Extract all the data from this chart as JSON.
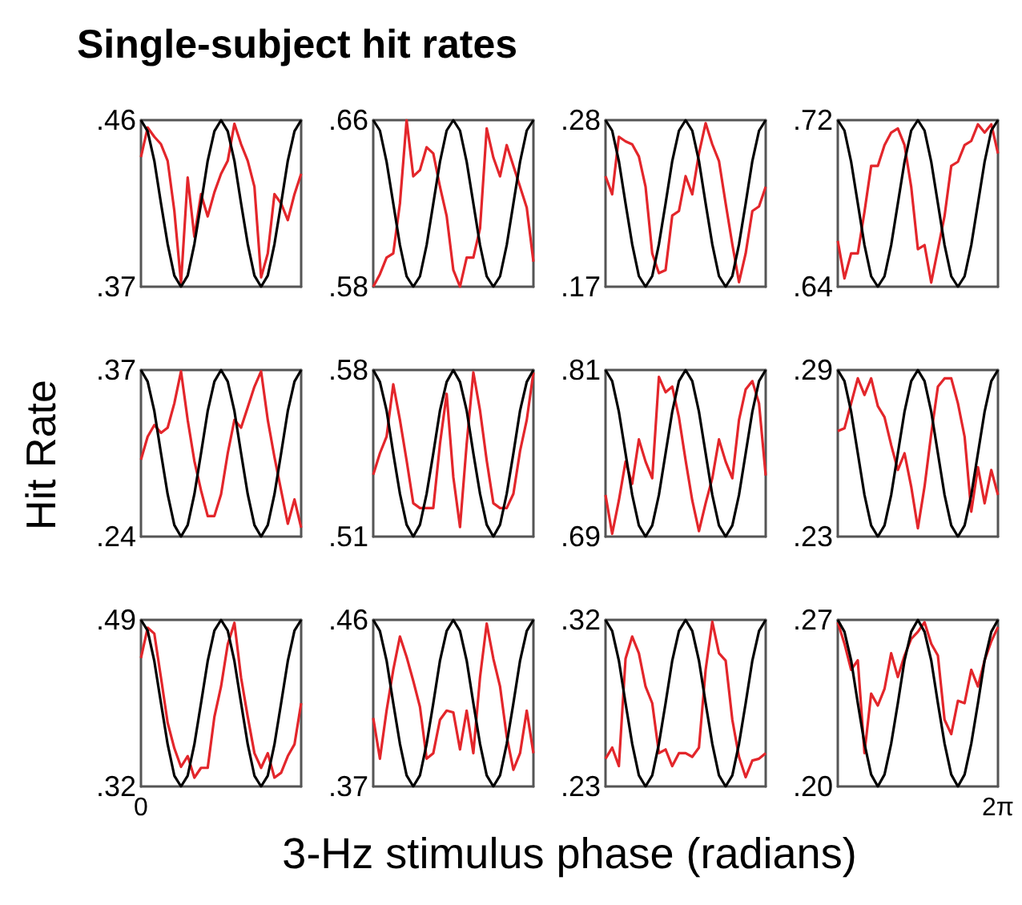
{
  "chart_data": [
    {
      "type": "line",
      "title": "Single-subject hit rates",
      "categories": [
        null,
        null,
        null,
        null,
        null,
        null,
        null,
        null,
        null,
        null,
        null,
        null,
        null,
        null,
        null,
        null,
        null,
        null,
        null,
        null,
        null,
        null,
        null,
        null,
        null
      ],
      "ylim": [
        0.37,
        0.46
      ],
      "yticks": [
        {
          "value": 0.37,
          "label": ".37"
        },
        {
          "value": 0.46,
          "label": ".46"
        }
      ],
      "series": [
        {
          "color": "#e3262b",
          "values": [
            0.44,
            0.456,
            0.451,
            0.447,
            0.438,
            0.411,
            0.372,
            0.429,
            0.397,
            0.42,
            0.408,
            0.421,
            0.431,
            0.438,
            0.458,
            0.447,
            0.438,
            0.424,
            0.375,
            0.388,
            0.42,
            0.415,
            0.406,
            0.42,
            0.431
          ]
        },
        {
          "color": "#000000",
          "values": [
            0.46,
            0.454,
            0.438,
            0.415,
            0.393,
            0.376,
            0.37,
            0.376,
            0.393,
            0.415,
            0.438,
            0.454,
            0.46,
            0.454,
            0.438,
            0.415,
            0.393,
            0.376,
            0.37,
            0.376,
            0.393,
            0.415,
            0.438,
            0.454,
            0.46
          ]
        }
      ]
    },
    {
      "type": "line",
      "categories": [
        null,
        null,
        null,
        null,
        null,
        null,
        null,
        null,
        null,
        null,
        null,
        null,
        null,
        null,
        null,
        null,
        null,
        null,
        null,
        null,
        null,
        null,
        null,
        null,
        null
      ],
      "ylim": [
        0.58,
        0.66
      ],
      "yticks": [
        {
          "value": 0.58,
          "label": ".58"
        },
        {
          "value": 0.66,
          "label": ".66"
        }
      ],
      "series": [
        {
          "color": "#e3262b",
          "values": [
            0.58,
            0.586,
            0.594,
            0.596,
            0.62,
            0.66,
            0.633,
            0.636,
            0.647,
            0.644,
            0.628,
            0.614,
            0.588,
            0.58,
            0.594,
            0.594,
            0.608,
            0.656,
            0.642,
            0.633,
            0.648,
            0.638,
            0.628,
            0.618,
            0.592
          ]
        },
        {
          "color": "#000000",
          "values": [
            0.66,
            0.655,
            0.64,
            0.62,
            0.6,
            0.585,
            0.58,
            0.585,
            0.6,
            0.62,
            0.64,
            0.655,
            0.66,
            0.655,
            0.64,
            0.62,
            0.6,
            0.585,
            0.58,
            0.585,
            0.6,
            0.62,
            0.64,
            0.655,
            0.66
          ]
        }
      ]
    },
    {
      "type": "line",
      "categories": [
        null,
        null,
        null,
        null,
        null,
        null,
        null,
        null,
        null,
        null,
        null,
        null,
        null,
        null,
        null,
        null,
        null,
        null,
        null,
        null,
        null,
        null,
        null,
        null,
        null
      ],
      "ylim": [
        0.17,
        0.28
      ],
      "yticks": [
        {
          "value": 0.17,
          "label": ".17"
        },
        {
          "value": 0.28,
          "label": ".28"
        }
      ],
      "series": [
        {
          "color": "#e3262b",
          "values": [
            0.243,
            0.231,
            0.269,
            0.266,
            0.264,
            0.256,
            0.236,
            0.192,
            0.179,
            0.181,
            0.217,
            0.22,
            0.243,
            0.231,
            0.258,
            0.278,
            0.264,
            0.253,
            0.225,
            0.198,
            0.173,
            0.192,
            0.22,
            0.223,
            0.236
          ]
        },
        {
          "color": "#000000",
          "values": [
            0.28,
            0.273,
            0.253,
            0.225,
            0.198,
            0.177,
            0.17,
            0.177,
            0.198,
            0.225,
            0.253,
            0.273,
            0.28,
            0.273,
            0.253,
            0.225,
            0.198,
            0.177,
            0.17,
            0.177,
            0.198,
            0.225,
            0.253,
            0.273,
            0.28
          ]
        }
      ]
    },
    {
      "type": "line",
      "categories": [
        null,
        null,
        null,
        null,
        null,
        null,
        null,
        null,
        null,
        null,
        null,
        null,
        null,
        null,
        null,
        null,
        null,
        null,
        null,
        null,
        null,
        null,
        null,
        null,
        null
      ],
      "ylim": [
        0.64,
        0.72
      ],
      "yticks": [
        {
          "value": 0.64,
          "label": ".64"
        },
        {
          "value": 0.72,
          "label": ".72"
        }
      ],
      "series": [
        {
          "color": "#e3262b",
          "values": [
            0.662,
            0.644,
            0.656,
            0.656,
            0.676,
            0.698,
            0.698,
            0.708,
            0.714,
            0.716,
            0.708,
            0.688,
            0.658,
            0.66,
            0.642,
            0.658,
            0.674,
            0.698,
            0.7,
            0.708,
            0.71,
            0.718,
            0.714,
            0.718,
            0.704
          ]
        },
        {
          "color": "#000000",
          "values": [
            0.72,
            0.715,
            0.7,
            0.68,
            0.66,
            0.645,
            0.64,
            0.645,
            0.66,
            0.68,
            0.7,
            0.715,
            0.72,
            0.715,
            0.7,
            0.68,
            0.66,
            0.645,
            0.64,
            0.645,
            0.66,
            0.68,
            0.7,
            0.715,
            0.72
          ]
        }
      ]
    },
    {
      "type": "line",
      "ylabel": "Hit Rate",
      "categories": [
        null,
        null,
        null,
        null,
        null,
        null,
        null,
        null,
        null,
        null,
        null,
        null,
        null,
        null,
        null,
        null,
        null,
        null,
        null,
        null,
        null,
        null,
        null,
        null,
        null
      ],
      "ylim": [
        0.24,
        0.37
      ],
      "yticks": [
        {
          "value": 0.24,
          "label": ".24"
        },
        {
          "value": 0.37,
          "label": ".37"
        }
      ],
      "series": [
        {
          "color": "#e3262b",
          "values": [
            0.3,
            0.318,
            0.327,
            0.321,
            0.325,
            0.344,
            0.369,
            0.331,
            0.299,
            0.276,
            0.256,
            0.256,
            0.273,
            0.305,
            0.331,
            0.325,
            0.341,
            0.357,
            0.369,
            0.331,
            0.302,
            0.276,
            0.25,
            0.269,
            0.247
          ]
        },
        {
          "color": "#000000",
          "values": [
            0.37,
            0.361,
            0.338,
            0.305,
            0.273,
            0.249,
            0.24,
            0.249,
            0.273,
            0.305,
            0.338,
            0.361,
            0.37,
            0.361,
            0.338,
            0.305,
            0.273,
            0.249,
            0.24,
            0.249,
            0.273,
            0.305,
            0.338,
            0.361,
            0.37
          ]
        }
      ]
    },
    {
      "type": "line",
      "categories": [
        null,
        null,
        null,
        null,
        null,
        null,
        null,
        null,
        null,
        null,
        null,
        null,
        null,
        null,
        null,
        null,
        null,
        null,
        null,
        null,
        null,
        null,
        null,
        null,
        null
      ],
      "ylim": [
        0.51,
        0.58
      ],
      "yticks": [
        {
          "value": 0.51,
          "label": ".51"
        },
        {
          "value": 0.58,
          "label": ".58"
        }
      ],
      "series": [
        {
          "color": "#e3262b",
          "values": [
            0.536,
            0.545,
            0.552,
            0.574,
            0.559,
            0.542,
            0.524,
            0.522,
            0.522,
            0.522,
            0.549,
            0.57,
            0.535,
            0.514,
            0.549,
            0.579,
            0.563,
            0.542,
            0.524,
            0.522,
            0.522,
            0.528,
            0.546,
            0.559,
            0.579
          ]
        },
        {
          "color": "#000000",
          "values": [
            0.58,
            0.575,
            0.563,
            0.545,
            0.528,
            0.515,
            0.51,
            0.515,
            0.528,
            0.545,
            0.563,
            0.575,
            0.58,
            0.575,
            0.563,
            0.545,
            0.528,
            0.515,
            0.51,
            0.515,
            0.528,
            0.545,
            0.563,
            0.575,
            0.58
          ]
        }
      ]
    },
    {
      "type": "line",
      "categories": [
        null,
        null,
        null,
        null,
        null,
        null,
        null,
        null,
        null,
        null,
        null,
        null,
        null,
        null,
        null,
        null,
        null,
        null,
        null,
        null,
        null,
        null,
        null,
        null,
        null
      ],
      "ylim": [
        0.69,
        0.81
      ],
      "yticks": [
        {
          "value": 0.69,
          "label": ".69"
        },
        {
          "value": 0.81,
          "label": ".81"
        }
      ],
      "series": [
        {
          "color": "#e3262b",
          "values": [
            0.72,
            0.692,
            0.716,
            0.744,
            0.728,
            0.76,
            0.744,
            0.732,
            0.805,
            0.794,
            0.798,
            0.776,
            0.745,
            0.716,
            0.694,
            0.714,
            0.732,
            0.76,
            0.744,
            0.732,
            0.774,
            0.796,
            0.802,
            0.786,
            0.734
          ]
        },
        {
          "color": "#000000",
          "values": [
            0.81,
            0.802,
            0.78,
            0.75,
            0.72,
            0.698,
            0.69,
            0.698,
            0.72,
            0.75,
            0.78,
            0.802,
            0.81,
            0.802,
            0.78,
            0.75,
            0.72,
            0.698,
            0.69,
            0.698,
            0.72,
            0.75,
            0.78,
            0.802,
            0.81
          ]
        }
      ]
    },
    {
      "type": "line",
      "categories": [
        null,
        null,
        null,
        null,
        null,
        null,
        null,
        null,
        null,
        null,
        null,
        null,
        null,
        null,
        null,
        null,
        null,
        null,
        null,
        null,
        null,
        null,
        null,
        null,
        null
      ],
      "ylim": [
        0.23,
        0.29
      ],
      "yticks": [
        {
          "value": 0.23,
          "label": ".23"
        },
        {
          "value": 0.29,
          "label": ".29"
        }
      ],
      "series": [
        {
          "color": "#e3262b",
          "values": [
            0.268,
            0.269,
            0.278,
            0.287,
            0.281,
            0.287,
            0.277,
            0.273,
            0.263,
            0.254,
            0.26,
            0.248,
            0.233,
            0.248,
            0.267,
            0.284,
            0.287,
            0.287,
            0.278,
            0.266,
            0.239,
            0.255,
            0.242,
            0.254,
            0.245
          ]
        },
        {
          "color": "#000000",
          "values": [
            0.29,
            0.286,
            0.275,
            0.26,
            0.245,
            0.234,
            0.23,
            0.234,
            0.245,
            0.26,
            0.275,
            0.286,
            0.29,
            0.286,
            0.275,
            0.26,
            0.245,
            0.234,
            0.23,
            0.234,
            0.245,
            0.26,
            0.275,
            0.286,
            0.29
          ]
        }
      ]
    },
    {
      "type": "line",
      "xlabel": "3-Hz stimulus phase (radians)",
      "annotations": [
        "0"
      ],
      "categories": [
        null,
        null,
        null,
        null,
        null,
        null,
        null,
        null,
        null,
        null,
        null,
        null,
        null,
        null,
        null,
        null,
        null,
        null,
        null,
        null,
        null,
        null,
        null,
        null,
        null
      ],
      "ylim": [
        0.32,
        0.49
      ],
      "yticks": [
        {
          "value": 0.32,
          "label": ".32"
        },
        {
          "value": 0.49,
          "label": ".49"
        }
      ],
      "series": [
        {
          "color": "#e3262b",
          "values": [
            0.451,
            0.482,
            0.476,
            0.431,
            0.385,
            0.359,
            0.34,
            0.351,
            0.329,
            0.339,
            0.339,
            0.391,
            0.422,
            0.465,
            0.487,
            0.431,
            0.391,
            0.354,
            0.339,
            0.354,
            0.329,
            0.334,
            0.351,
            0.363,
            0.405
          ]
        },
        {
          "color": "#000000",
          "values": [
            0.49,
            0.479,
            0.448,
            0.405,
            0.363,
            0.331,
            0.32,
            0.331,
            0.363,
            0.405,
            0.448,
            0.479,
            0.49,
            0.479,
            0.448,
            0.405,
            0.363,
            0.331,
            0.32,
            0.331,
            0.363,
            0.405,
            0.448,
            0.479,
            0.49
          ]
        }
      ]
    },
    {
      "type": "line",
      "categories": [
        null,
        null,
        null,
        null,
        null,
        null,
        null,
        null,
        null,
        null,
        null,
        null,
        null,
        null,
        null,
        null,
        null,
        null,
        null,
        null,
        null,
        null,
        null,
        null,
        null
      ],
      "ylim": [
        0.37,
        0.46
      ],
      "yticks": [
        {
          "value": 0.37,
          "label": ".37"
        },
        {
          "value": 0.46,
          "label": ".46"
        }
      ],
      "series": [
        {
          "color": "#e3262b",
          "values": [
            0.407,
            0.385,
            0.411,
            0.433,
            0.451,
            0.44,
            0.427,
            0.413,
            0.385,
            0.388,
            0.406,
            0.411,
            0.41,
            0.39,
            0.411,
            0.388,
            0.429,
            0.458,
            0.439,
            0.424,
            0.397,
            0.379,
            0.388,
            0.411,
            0.388
          ]
        },
        {
          "color": "#000000",
          "values": [
            0.46,
            0.454,
            0.438,
            0.415,
            0.393,
            0.376,
            0.37,
            0.376,
            0.393,
            0.415,
            0.438,
            0.454,
            0.46,
            0.454,
            0.438,
            0.415,
            0.393,
            0.376,
            0.37,
            0.376,
            0.393,
            0.415,
            0.438,
            0.454,
            0.46
          ]
        }
      ]
    },
    {
      "type": "line",
      "categories": [
        null,
        null,
        null,
        null,
        null,
        null,
        null,
        null,
        null,
        null,
        null,
        null,
        null,
        null,
        null,
        null,
        null,
        null,
        null,
        null,
        null,
        null,
        null,
        null,
        null
      ],
      "ylim": [
        0.23,
        0.32
      ],
      "yticks": [
        {
          "value": 0.23,
          "label": ".23"
        },
        {
          "value": 0.32,
          "label": ".32"
        }
      ],
      "series": [
        {
          "color": "#e3262b",
          "values": [
            0.245,
            0.251,
            0.241,
            0.299,
            0.311,
            0.302,
            0.284,
            0.275,
            0.248,
            0.25,
            0.241,
            0.248,
            0.248,
            0.246,
            0.251,
            0.293,
            0.319,
            0.302,
            0.298,
            0.266,
            0.246,
            0.235,
            0.244,
            0.245,
            0.248
          ]
        },
        {
          "color": "#000000",
          "values": [
            0.32,
            0.314,
            0.298,
            0.275,
            0.253,
            0.236,
            0.23,
            0.236,
            0.253,
            0.275,
            0.298,
            0.314,
            0.32,
            0.314,
            0.298,
            0.275,
            0.253,
            0.236,
            0.23,
            0.236,
            0.253,
            0.275,
            0.298,
            0.314,
            0.32
          ]
        }
      ]
    },
    {
      "type": "line",
      "annotations": [
        "2π"
      ],
      "categories": [
        null,
        null,
        null,
        null,
        null,
        null,
        null,
        null,
        null,
        null,
        null,
        null,
        null,
        null,
        null,
        null,
        null,
        null,
        null,
        null,
        null,
        null,
        null,
        null,
        null
      ],
      "ylim": [
        0.2,
        0.27
      ],
      "yticks": [
        {
          "value": 0.2,
          "label": ".20"
        },
        {
          "value": 0.27,
          "label": ".27"
        }
      ],
      "series": [
        {
          "color": "#e3262b",
          "values": [
            0.269,
            0.26,
            0.249,
            0.253,
            0.214,
            0.239,
            0.234,
            0.241,
            0.256,
            0.246,
            0.255,
            0.262,
            0.265,
            0.269,
            0.26,
            0.255,
            0.228,
            0.222,
            0.236,
            0.235,
            0.249,
            0.242,
            0.253,
            0.261,
            0.267
          ]
        },
        {
          "color": "#000000",
          "values": [
            0.27,
            0.265,
            0.253,
            0.235,
            0.218,
            0.205,
            0.2,
            0.205,
            0.218,
            0.235,
            0.253,
            0.265,
            0.27,
            0.265,
            0.253,
            0.235,
            0.218,
            0.205,
            0.2,
            0.205,
            0.218,
            0.235,
            0.253,
            0.265,
            0.27
          ]
        }
      ]
    }
  ]
}
